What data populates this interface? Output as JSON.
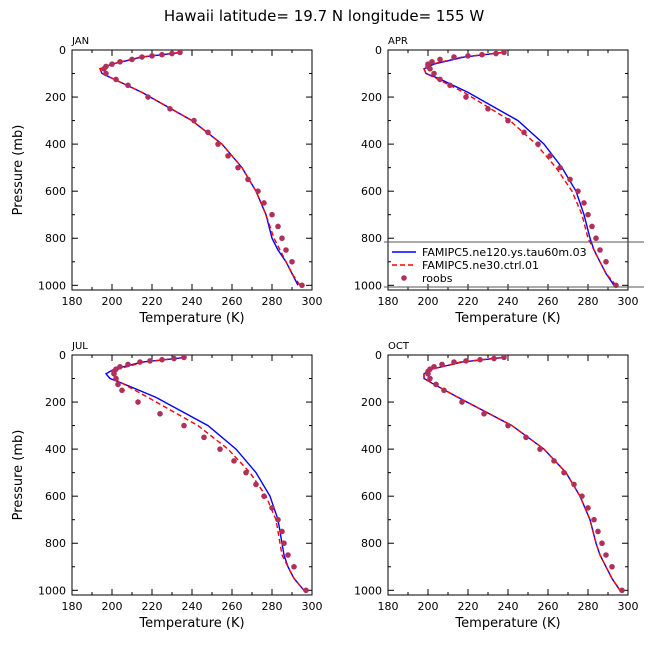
{
  "chart_data": {
    "type": "line",
    "title": "Hawaii  latitude= 19.7 N longitude= 155 W",
    "xlabel": "Temperature (K)",
    "ylabel": "Pressure (mb)",
    "xlim": [
      180,
      300
    ],
    "ylim": [
      1020,
      0
    ],
    "xticks": [
      "180",
      "200",
      "220",
      "240",
      "260",
      "280",
      "300"
    ],
    "yticks": [
      "0",
      "200",
      "400",
      "600",
      "800",
      "1000"
    ],
    "series_styles": [
      {
        "name": "FAMIPC5.ne120.ys.tau60m.03",
        "color": "#0000ff",
        "style": "solid"
      },
      {
        "name": "FAMIPC5.ne30.ctrl.01",
        "color": "#ff0000",
        "style": "dashed"
      },
      {
        "name": "roobs",
        "color": "#b0305a",
        "style": "markers"
      }
    ],
    "panels": [
      {
        "label": "JAN",
        "series": [
          {
            "name": "FAMIPC5.ne120.ys.tau60m.03",
            "x": [
              235,
              215,
              200,
              194,
              195,
              200,
              215,
              240,
              255,
              265,
              272,
              277,
              280,
              283,
              287,
              290,
              293
            ],
            "y": [
              10,
              30,
              60,
              80,
              100,
              120,
              180,
              300,
              400,
              500,
              600,
              700,
              800,
              850,
              900,
              950,
              1000
            ]
          },
          {
            "name": "FAMIPC5.ne30.ctrl.01",
            "x": [
              234,
              214,
              200,
              194,
              195,
              200,
              215,
              240,
              255,
              265,
              272,
              277,
              281,
              284,
              287,
              290,
              294
            ],
            "y": [
              10,
              30,
              60,
              80,
              100,
              120,
              180,
              300,
              400,
              500,
              600,
              700,
              800,
              850,
              900,
              950,
              1000
            ]
          },
          {
            "name": "roobs",
            "x": [
              234,
              230,
              225,
              220,
              215,
              210,
              204,
              200,
              197,
              196,
              197,
              202,
              208,
              218,
              229,
              241,
              248,
              253,
              258,
              263,
              268,
              273,
              276,
              280,
              283,
              285,
              287,
              290,
              295
            ],
            "y": [
              10,
              15,
              20,
              25,
              30,
              40,
              50,
              60,
              70,
              80,
              100,
              125,
              150,
              200,
              250,
              300,
              350,
              400,
              450,
              500,
              550,
              600,
              650,
              700,
              750,
              800,
              850,
              900,
              1000
            ]
          }
        ]
      },
      {
        "label": "APR",
        "series": [
          {
            "name": "FAMIPC5.ne120.ys.tau60m.03",
            "x": [
              238,
              218,
              203,
              198,
              199,
              205,
              220,
              245,
              258,
              267,
              274,
              278,
              281,
              283,
              286,
              289,
              293
            ],
            "y": [
              10,
              30,
              60,
              80,
              100,
              120,
              180,
              300,
              400,
              500,
              600,
              700,
              800,
              850,
              900,
              950,
              1000
            ]
          },
          {
            "name": "FAMIPC5.ne30.ctrl.01",
            "x": [
              237,
              217,
              202,
              198,
              199,
              204,
              218,
              241,
              254,
              264,
              272,
              277,
              280,
              283,
              286,
              289,
              294
            ],
            "y": [
              10,
              30,
              60,
              80,
              100,
              120,
              180,
              300,
              400,
              500,
              600,
              700,
              800,
              850,
              900,
              950,
              1000
            ]
          },
          {
            "name": "roobs",
            "x": [
              238,
              234,
              227,
              220,
              213,
              206,
              202,
              200,
              200,
              201,
              203,
              206,
              211,
              219,
              230,
              240,
              248,
              255,
              261,
              266,
              271,
              275,
              278,
              280,
              282,
              284,
              286,
              289,
              294
            ],
            "y": [
              10,
              15,
              20,
              25,
              30,
              40,
              50,
              60,
              70,
              80,
              100,
              125,
              150,
              200,
              250,
              300,
              350,
              400,
              450,
              500,
              550,
              600,
              650,
              700,
              750,
              800,
              850,
              900,
              1000
            ]
          }
        ]
      },
      {
        "label": "JUL",
        "series": [
          {
            "name": "FAMIPC5.ne120.ys.tau60m.03",
            "x": [
              237,
              215,
              201,
              197,
              199,
              205,
              222,
              248,
              262,
              272,
              279,
              283,
              285,
              286,
              288,
              291,
              296
            ],
            "y": [
              10,
              30,
              60,
              80,
              100,
              120,
              180,
              300,
              400,
              500,
              600,
              700,
              800,
              850,
              900,
              950,
              1000
            ]
          },
          {
            "name": "FAMIPC5.ne30.ctrl.01",
            "x": [
              236,
              216,
              203,
              200,
              201,
              205,
              218,
              243,
              258,
              269,
              277,
              282,
              284,
              285,
              288,
              291,
              296
            ],
            "y": [
              10,
              30,
              60,
              80,
              100,
              120,
              180,
              300,
              400,
              500,
              600,
              700,
              800,
              850,
              900,
              950,
              1000
            ]
          },
          {
            "name": "roobs",
            "x": [
              236,
              231,
              225,
              219,
              214,
              208,
              204,
              202,
              201,
              201,
              202,
              203,
              205,
              213,
              224,
              236,
              246,
              254,
              261,
              267,
              272,
              276,
              280,
              283,
              285,
              286,
              288,
              291,
              297
            ],
            "y": [
              10,
              15,
              20,
              25,
              30,
              40,
              50,
              60,
              70,
              80,
              100,
              125,
              150,
              200,
              250,
              300,
              350,
              400,
              450,
              500,
              550,
              600,
              650,
              700,
              750,
              800,
              850,
              900,
              1000
            ]
          }
        ]
      },
      {
        "label": "OCT",
        "series": [
          {
            "name": "FAMIPC5.ne120.ys.tau60m.03",
            "x": [
              238,
              217,
              202,
              198,
              198,
              202,
              215,
              242,
              258,
              269,
              276,
              281,
              284,
              286,
              289,
              292,
              296
            ],
            "y": [
              10,
              30,
              60,
              80,
              100,
              120,
              180,
              300,
              400,
              500,
              600,
              700,
              800,
              850,
              900,
              950,
              1000
            ]
          },
          {
            "name": "FAMIPC5.ne30.ctrl.01",
            "x": [
              237,
              216,
              202,
              198,
              198,
              202,
              215,
              242,
              258,
              269,
              276,
              281,
              284,
              286,
              289,
              292,
              296
            ],
            "y": [
              10,
              30,
              60,
              80,
              100,
              120,
              180,
              300,
              400,
              500,
              600,
              700,
              800,
              850,
              900,
              950,
              1000
            ]
          },
          {
            "name": "roobs",
            "x": [
              238,
              233,
              226,
              219,
              213,
              207,
              203,
              201,
              200,
              200,
              201,
              204,
              208,
              217,
              228,
              240,
              249,
              256,
              263,
              268,
              273,
              277,
              280,
              283,
              285,
              287,
              289,
              292,
              297
            ],
            "y": [
              10,
              15,
              20,
              25,
              30,
              40,
              50,
              60,
              70,
              80,
              100,
              125,
              150,
              200,
              250,
              300,
              350,
              400,
              450,
              500,
              550,
              600,
              650,
              700,
              750,
              800,
              850,
              900,
              1000
            ]
          }
        ]
      }
    ],
    "legend": {
      "panel": "APR",
      "placement": "bottom-right",
      "entries": [
        "FAMIPC5.ne120.ys.tau60m.03",
        "FAMIPC5.ne30.ctrl.01",
        "roobs"
      ]
    }
  }
}
